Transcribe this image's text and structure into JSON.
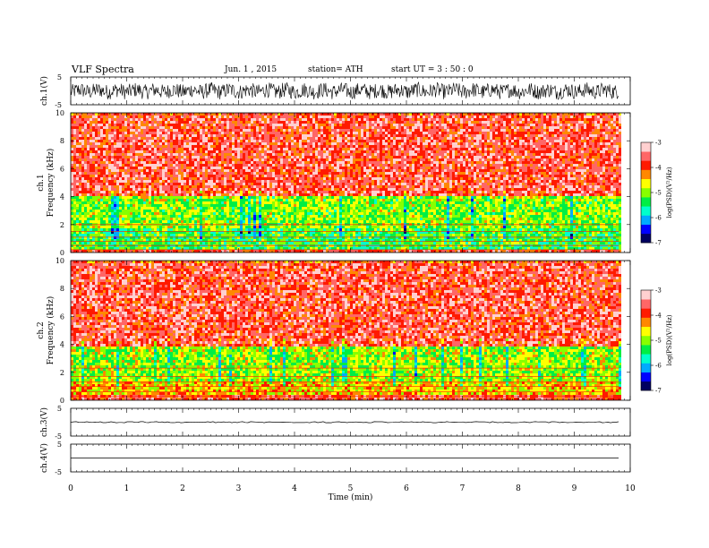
{
  "header": {
    "title": "VLF Spectra",
    "date": "Jun. 1 , 2015",
    "station": "station= ATH",
    "start": "start UT = 3 : 50 : 0"
  },
  "chart_data": [
    {
      "type": "line",
      "ylabel": "ch.1(V)",
      "ylim": [
        -5,
        5
      ],
      "yticks": [
        "5",
        "-5"
      ],
      "xlim": [
        0,
        10
      ]
    },
    {
      "type": "heatmap",
      "ylabel": "ch.1\nFrequency (kHz)",
      "ylim": [
        0,
        10
      ],
      "yticks": [
        "0",
        "2",
        "4",
        "6",
        "8",
        "10"
      ],
      "xlim": [
        0,
        10
      ],
      "data_end_min": 9.8,
      "colorbar": {
        "label": "log(PSD)(V²/Hz)",
        "ticks": [
          "-3",
          "-4",
          "-5",
          "-6",
          "-7"
        ],
        "range": [
          -7,
          -3
        ]
      },
      "bands": [
        {
          "from_khz": 0,
          "to_khz": 0.3,
          "level": -3.8
        },
        {
          "from_khz": 0.3,
          "to_khz": 1.8,
          "level": -5.3
        },
        {
          "from_khz": 1.8,
          "to_khz": 4.2,
          "level": -5.0
        },
        {
          "from_khz": 4.2,
          "to_khz": 10,
          "level": -3.7
        }
      ]
    },
    {
      "type": "heatmap",
      "ylabel": "ch.2\nFrequency (kHz)",
      "ylim": [
        0,
        10
      ],
      "yticks": [
        "0",
        "2",
        "4",
        "6",
        "8",
        "10"
      ],
      "xlim": [
        0,
        10
      ],
      "data_end_min": 9.8,
      "colorbar": {
        "label": "log(PSD)(V²/Hz)",
        "ticks": [
          "-3",
          "-4",
          "-5",
          "-6",
          "-7"
        ],
        "range": [
          -7,
          -3
        ]
      },
      "bands": [
        {
          "from_khz": 0,
          "to_khz": 0.4,
          "level": -3.8
        },
        {
          "from_khz": 0.4,
          "to_khz": 1.4,
          "level": -4.5
        },
        {
          "from_khz": 1.4,
          "to_khz": 4.0,
          "level": -4.9
        },
        {
          "from_khz": 4.0,
          "to_khz": 10,
          "level": -3.7
        }
      ]
    },
    {
      "type": "line",
      "ylabel": "ch.3(V)",
      "ylim": [
        -5,
        5
      ],
      "yticks": [
        "5",
        "-5"
      ],
      "xlim": [
        0,
        10
      ],
      "level": 0
    },
    {
      "type": "line",
      "ylabel": "ch.4(V)",
      "ylim": [
        -5,
        5
      ],
      "yticks": [
        "5",
        "-5"
      ],
      "xlim": [
        0,
        10
      ],
      "level": 0
    }
  ],
  "x_axis": {
    "label": "Time (min)",
    "ticks": [
      "0",
      "1",
      "2",
      "3",
      "4",
      "5",
      "6",
      "7",
      "8",
      "9",
      "10"
    ],
    "range": [
      0,
      10
    ]
  },
  "colors": {
    "scale": [
      "#000060",
      "#0000ff",
      "#00aaff",
      "#00ffcc",
      "#00ee44",
      "#88ff00",
      "#ffff00",
      "#ff8800",
      "#ff1a00",
      "#ff6666",
      "#ffd0d0"
    ]
  }
}
